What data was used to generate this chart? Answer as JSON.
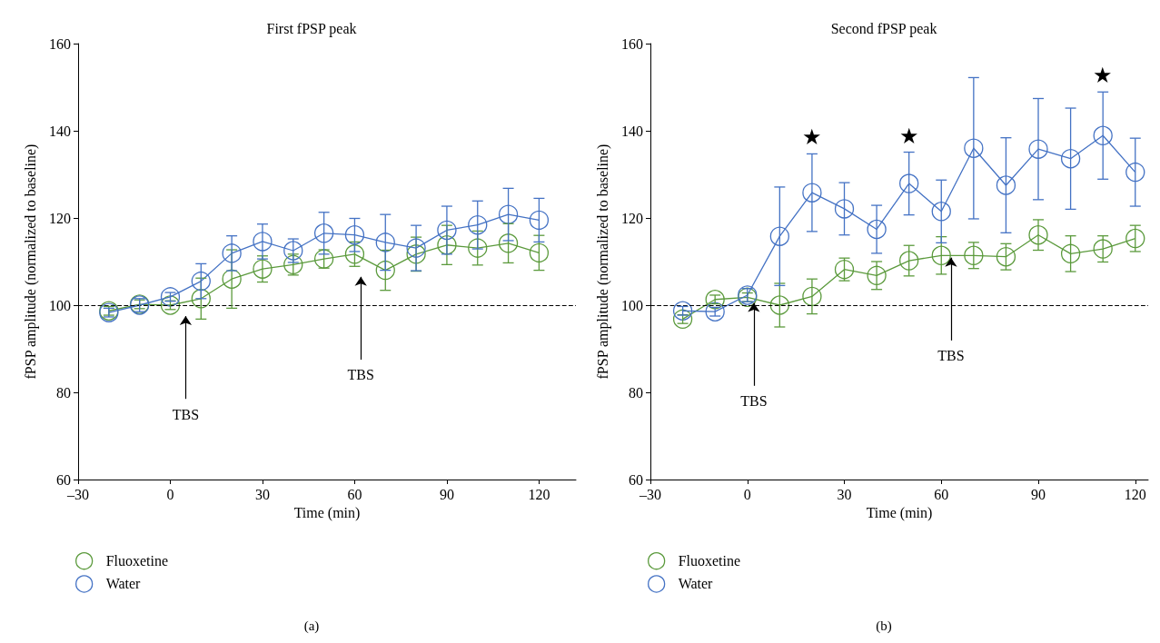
{
  "chart_data": [
    {
      "type": "line",
      "title": "First fPSP peak",
      "xlabel": "Time (min)",
      "ylabel": "fPSP amplitude (normalized to baseline)",
      "x": [
        -20,
        -10,
        0,
        10,
        20,
        30,
        40,
        50,
        60,
        70,
        80,
        90,
        100,
        110,
        120
      ],
      "series": [
        {
          "name": "Fluoxetine",
          "color": "#5b9a3c",
          "values": [
            98.7,
            100.2,
            100,
            101.5,
            106,
            108.3,
            109.3,
            110.6,
            111.7,
            108,
            111.7,
            113.8,
            113.1,
            114.2,
            112
          ],
          "errors": [
            1,
            1,
            1,
            4.7,
            6.7,
            3,
            2.4,
            2.1,
            2.8,
            4.6,
            3.9,
            4.5,
            3.9,
            4.5,
            4
          ]
        },
        {
          "name": "Water",
          "color": "#4472c4",
          "values": [
            98.3,
            100,
            101.9,
            105.5,
            111.9,
            114.6,
            112.5,
            116.5,
            116.1,
            114.4,
            113.1,
            117.2,
            118.4,
            120.8,
            119.5
          ],
          "errors": [
            1,
            1.5,
            1,
            4,
            4,
            4,
            2.7,
            4.8,
            3.8,
            6.4,
            5.2,
            5.5,
            5.5,
            6,
            5
          ]
        }
      ],
      "xlim": [
        -30,
        132
      ],
      "xticks": [
        {
          "value": -30,
          "label": "–30"
        },
        0,
        30,
        60,
        90,
        120
      ],
      "ylim": [
        60,
        160
      ],
      "yticks": [
        60,
        80,
        100,
        120,
        140,
        160
      ],
      "ref_lines": [
        {
          "axis": "y",
          "value": 100,
          "color": "#000000",
          "line_style": "dashed"
        }
      ],
      "annotations": [
        "TBS",
        "TBS",
        "(a)"
      ],
      "marker": "circle",
      "line_style": "solid",
      "grid": false,
      "legend": "bottom left"
    },
    {
      "type": "line",
      "title": "Second fPSP peak",
      "xlabel": "Time (min)",
      "ylabel": "fPSP amplitude (normalized to baseline)",
      "x": [
        -20,
        -10,
        0,
        10,
        20,
        30,
        40,
        50,
        60,
        70,
        80,
        90,
        100,
        110,
        120
      ],
      "series": [
        {
          "name": "Fluoxetine",
          "color": "#5b9a3c",
          "values": [
            96.8,
            101.3,
            101.8,
            100,
            102,
            108.2,
            106.8,
            110.2,
            111.4,
            111.4,
            111.1,
            116.1,
            111.8,
            112.9,
            115.3
          ],
          "errors": [
            1,
            1,
            1,
            5,
            4,
            2.6,
            3.2,
            3.5,
            4.3,
            3,
            3,
            3.5,
            4.1,
            3,
            3
          ]
        },
        {
          "name": "Water",
          "color": "#4472c4",
          "values": [
            98.7,
            98.5,
            102.3,
            115.8,
            125.8,
            122.1,
            117.4,
            127.9,
            121.5,
            136,
            127.5,
            135.8,
            133.6,
            138.9,
            130.5
          ],
          "errors": [
            1,
            1,
            1.5,
            11.3,
            8.9,
            6,
            5.5,
            7.2,
            7.2,
            16.2,
            10.9,
            11.6,
            11.6,
            10,
            7.8
          ]
        }
      ],
      "xlim": [
        -30,
        124
      ],
      "xticks": [
        {
          "value": -30,
          "label": "–30"
        },
        0,
        30,
        60,
        90,
        120
      ],
      "ylim": [
        60,
        160
      ],
      "yticks": [
        60,
        80,
        100,
        120,
        140,
        160
      ],
      "ref_lines": [
        {
          "axis": "y",
          "value": 100,
          "color": "#000000",
          "line_style": "dashed"
        }
      ],
      "annotations": [
        {
          "text": "TBS",
          "x": 2,
          "y": 101
        },
        {
          "text": "TBS",
          "x": 63,
          "y": 111.4
        },
        {
          "text": "★",
          "x": 20,
          "y": 125.8
        },
        {
          "text": "★",
          "x": 50,
          "y": 127.9
        },
        {
          "text": "★",
          "x": 110,
          "y": 138.9
        },
        "(b)"
      ],
      "marker": "circle",
      "line_style": "solid",
      "grid": false,
      "legend": "bottom left"
    }
  ]
}
